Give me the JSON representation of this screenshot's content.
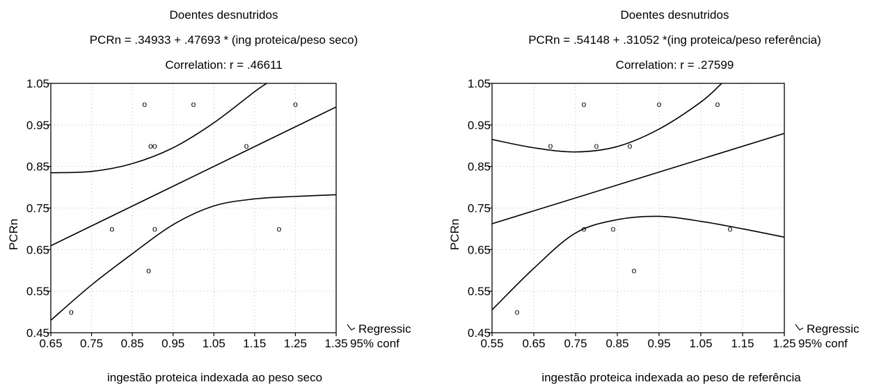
{
  "panels": [
    {
      "title": "Doentes desnutridos",
      "equation": "PCRn = .34933 + .47693 * (ing proteica/peso seco)",
      "correlation": "Correlation: r = .46611",
      "xlabel": "ingestão proteica indexada ao peso seco",
      "ylabel": "PCRn",
      "legend": [
        "Regressic",
        "95% conf"
      ]
    },
    {
      "title": "Doentes desnutridos",
      "equation": "PCRn = .54148 + .31052 *(ing proteica/peso referência)",
      "correlation": "Correlation: r = .27599",
      "xlabel": "ingestão proteica indexada ao peso de referência",
      "ylabel": "PCRn",
      "legend": [
        "Regressic",
        "95% conf"
      ]
    }
  ],
  "chart_data": [
    {
      "type": "scatter",
      "title": "Doentes desnutridos",
      "xlabel": "ingestão proteica indexada ao peso seco",
      "ylabel": "PCRn",
      "xlim": [
        0.65,
        1.35
      ],
      "ylim": [
        0.45,
        1.05
      ],
      "xticks": [
        "0.65",
        "0.75",
        "0.85",
        "0.95",
        "1.05",
        "1.15",
        "1.25",
        "1.35"
      ],
      "yticks": [
        "0.45",
        "0.55",
        "0.65",
        "0.75",
        "0.85",
        "0.95",
        "1.05"
      ],
      "points": [
        {
          "x": 0.7,
          "y": 0.5
        },
        {
          "x": 0.8,
          "y": 0.7
        },
        {
          "x": 0.88,
          "y": 1.0
        },
        {
          "x": 0.89,
          "y": 0.6
        },
        {
          "x": 0.895,
          "y": 0.9
        },
        {
          "x": 0.905,
          "y": 0.9
        },
        {
          "x": 0.905,
          "y": 0.7
        },
        {
          "x": 1.0,
          "y": 1.0
        },
        {
          "x": 1.13,
          "y": 0.9
        },
        {
          "x": 1.21,
          "y": 0.7
        },
        {
          "x": 1.25,
          "y": 1.0
        }
      ],
      "regression": {
        "intercept": 0.34933,
        "slope": 0.47693
      },
      "conf_upper": [
        [
          0.65,
          0.835
        ],
        [
          0.75,
          0.838
        ],
        [
          0.85,
          0.857
        ],
        [
          0.95,
          0.895
        ],
        [
          1.05,
          0.955
        ],
        [
          1.15,
          1.03
        ],
        [
          1.18,
          1.05
        ]
      ],
      "conf_lower": [
        [
          0.65,
          0.48
        ],
        [
          0.75,
          0.565
        ],
        [
          0.85,
          0.64
        ],
        [
          0.95,
          0.71
        ],
        [
          1.05,
          0.755
        ],
        [
          1.15,
          0.772
        ],
        [
          1.25,
          0.778
        ],
        [
          1.35,
          0.782
        ]
      ],
      "legend": [
        "Regressic",
        "95% conf"
      ]
    },
    {
      "type": "scatter",
      "title": "Doentes desnutridos",
      "xlabel": "ingestão proteica indexada ao peso de referência",
      "ylabel": "PCRn",
      "xlim": [
        0.55,
        1.25
      ],
      "ylim": [
        0.45,
        1.05
      ],
      "xticks": [
        "0.55",
        "0.65",
        "0.75",
        "0.85",
        "0.95",
        "1.05",
        "1.15",
        "1.25"
      ],
      "yticks": [
        "0.45",
        "0.55",
        "0.65",
        "0.75",
        "0.85",
        "0.95",
        "1.05"
      ],
      "points": [
        {
          "x": 0.61,
          "y": 0.5
        },
        {
          "x": 0.69,
          "y": 0.9
        },
        {
          "x": 0.77,
          "y": 1.0
        },
        {
          "x": 0.77,
          "y": 0.7
        },
        {
          "x": 0.8,
          "y": 0.9
        },
        {
          "x": 0.84,
          "y": 0.7
        },
        {
          "x": 0.88,
          "y": 0.9
        },
        {
          "x": 0.89,
          "y": 0.6
        },
        {
          "x": 0.95,
          "y": 1.0
        },
        {
          "x": 1.09,
          "y": 1.0
        },
        {
          "x": 1.12,
          "y": 0.7
        }
      ],
      "regression": {
        "intercept": 0.54148,
        "slope": 0.31052
      },
      "conf_upper": [
        [
          0.55,
          0.915
        ],
        [
          0.65,
          0.895
        ],
        [
          0.75,
          0.885
        ],
        [
          0.85,
          0.898
        ],
        [
          0.95,
          0.94
        ],
        [
          1.05,
          1.005
        ],
        [
          1.1,
          1.05
        ]
      ],
      "conf_lower": [
        [
          0.55,
          0.505
        ],
        [
          0.65,
          0.605
        ],
        [
          0.75,
          0.69
        ],
        [
          0.85,
          0.722
        ],
        [
          0.95,
          0.73
        ],
        [
          1.05,
          0.718
        ],
        [
          1.15,
          0.7
        ],
        [
          1.25,
          0.68
        ]
      ],
      "legend": [
        "Regressic",
        "95% conf"
      ]
    }
  ]
}
